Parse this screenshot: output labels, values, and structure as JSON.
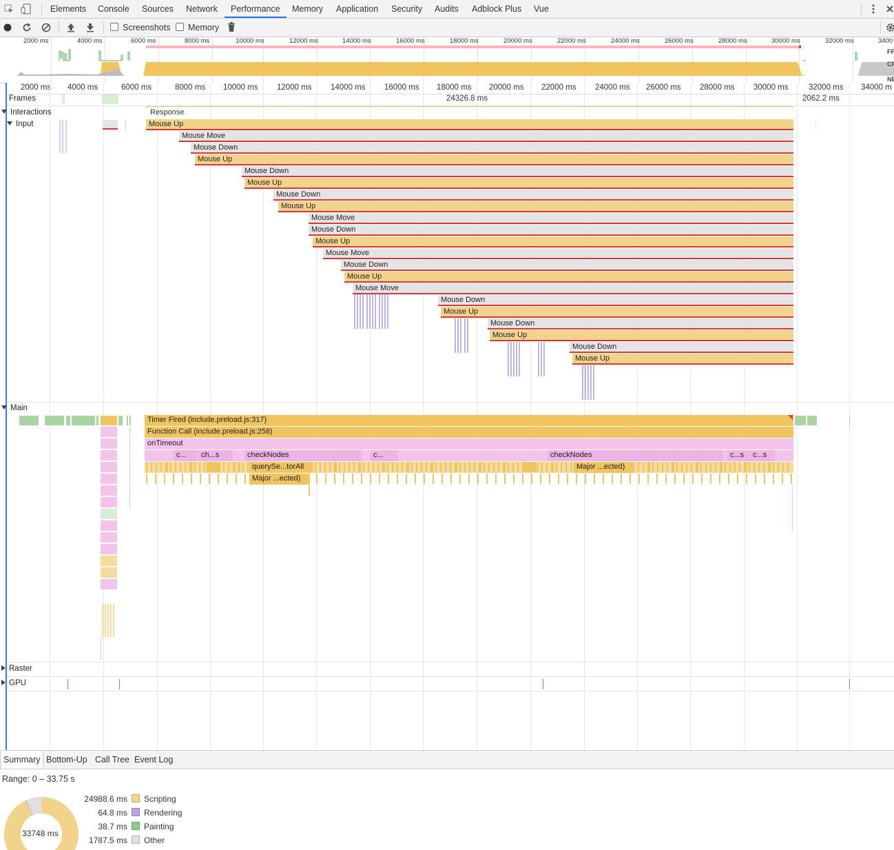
{
  "tabs": [
    "Elements",
    "Console",
    "Sources",
    "Network",
    "Performance",
    "Memory",
    "Application",
    "Security",
    "Audits",
    "Adblock Plus",
    "Vue"
  ],
  "active_tab": "Performance",
  "toolbar": {
    "screenshots_label": "Screenshots",
    "memory_label": "Memory"
  },
  "overview": {
    "ticks": [
      "2000 ms",
      "4000 ms",
      "6000 ms",
      "8000 ms",
      "10000 ms",
      "12000 ms",
      "14000 ms",
      "16000 ms",
      "18000 ms",
      "20000 ms",
      "22000 ms",
      "24000 ms",
      "26000 ms",
      "28000 ms",
      "30000 ms",
      "32000 ms",
      "3400"
    ],
    "side_labels": [
      "FP",
      "CP",
      "NE"
    ]
  },
  "ruler": {
    "ticks": [
      "2000 ms",
      "4000 ms",
      "6000 ms",
      "8000 ms",
      "10000 ms",
      "12000 ms",
      "14000 ms",
      "16000 ms",
      "18000 ms",
      "20000 ms",
      "22000 ms",
      "24000 ms",
      "26000 ms",
      "28000 ms",
      "30000 ms",
      "32000 ms",
      "34000 m"
    ]
  },
  "tracks": {
    "frames": {
      "label": "Frames",
      "values": [
        "24326.8 ms",
        "2062.2 ms"
      ]
    },
    "interactions": {
      "label": "Interactions",
      "response_label": "Response"
    },
    "input": {
      "label": "Input",
      "events": [
        "Mouse Up",
        "Mouse Move",
        "Mouse Down",
        "Mouse Up",
        "Mouse Down",
        "Mouse Up",
        "Mouse Down",
        "Mouse Up",
        "Mouse Move",
        "Mouse Down",
        "Mouse Up",
        "Mouse Move",
        "Mouse Down",
        "Mouse Up",
        "Mouse Move",
        "Mouse Down",
        "Mouse Up",
        "Mouse Down",
        "Mouse Up",
        "Mouse Down",
        "Mouse Up"
      ]
    },
    "main": {
      "label": "Main",
      "timer": "Timer Fired (include.preload.js:317)",
      "function_call": "Function Call (include.preload.js:258)",
      "on_timeout": "onTimeout",
      "row4": [
        "c...",
        "ch...s",
        "checkNodes",
        "c...",
        "checkNodes",
        "c...s",
        "c...s"
      ],
      "row5": [
        "querySe...torAll",
        "Major ...ected)"
      ],
      "row6": [
        "Major ...ected)"
      ]
    },
    "raster": {
      "label": "Raster"
    },
    "gpu": {
      "label": "GPU"
    }
  },
  "bottom_tabs": [
    "Summary",
    "Bottom-Up",
    "Call Tree",
    "Event Log"
  ],
  "summary": {
    "range": "Range: 0 – 33.75 s",
    "total": "33748 ms",
    "rows": [
      {
        "value": "24988.6 ms",
        "label": "Scripting",
        "color": "#f2d38b"
      },
      {
        "value": "64.8 ms",
        "label": "Rendering",
        "color": "#b7a4ea"
      },
      {
        "value": "38.7 ms",
        "label": "Painting",
        "color": "#8ecb84"
      },
      {
        "value": "1787.5 ms",
        "label": "Other",
        "color": "#e0e0e0"
      }
    ]
  }
}
